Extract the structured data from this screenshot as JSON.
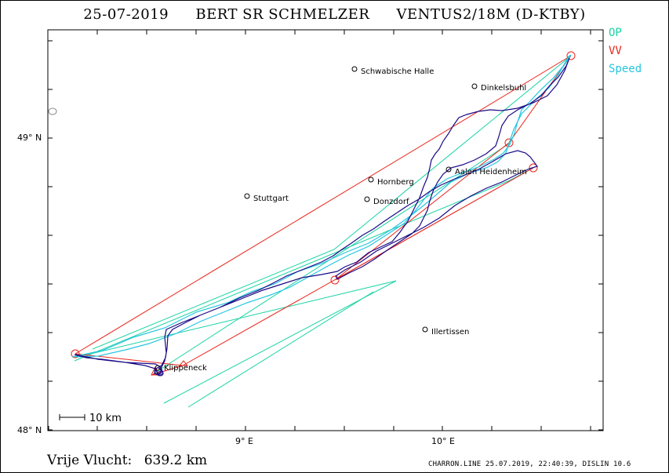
{
  "header": {
    "date": "25-07-2019",
    "pilot": "BERT SR SCHMELZER",
    "glider": "VENTUS2/18M (D-KTBY)"
  },
  "legend": [
    {
      "label": "OP",
      "color": "#19d3a4"
    },
    {
      "label": "VV",
      "color": "#e8261c"
    },
    {
      "label": "Speed",
      "color": "#26c6e0"
    }
  ],
  "axes": {
    "lat_top": "49° N",
    "lat_bottom": "48° N",
    "lon_left": "9° E",
    "lon_right": "10° E"
  },
  "towns": [
    {
      "name": "Schwabische Halle"
    },
    {
      "name": "Dinkelsbuhl"
    },
    {
      "name": "Aalen Heidenheim"
    },
    {
      "name": "Hornberg"
    },
    {
      "name": "Stuttgart"
    },
    {
      "name": "Donzdorf"
    },
    {
      "name": "Illertissen"
    },
    {
      "name": "Klippeneck"
    }
  ],
  "scale": {
    "label": "10 km"
  },
  "footer": {
    "label": "Vrije Vlucht:",
    "distance": "639.2 km",
    "info": "CHARRON.LINE 25.07.2019, 22:40:39, DISLIN 10.6"
  },
  "colors": {
    "track": "#1a0a86",
    "op": "#19d3a4",
    "vv": "#e8261c",
    "speed": "#26c6e0"
  }
}
